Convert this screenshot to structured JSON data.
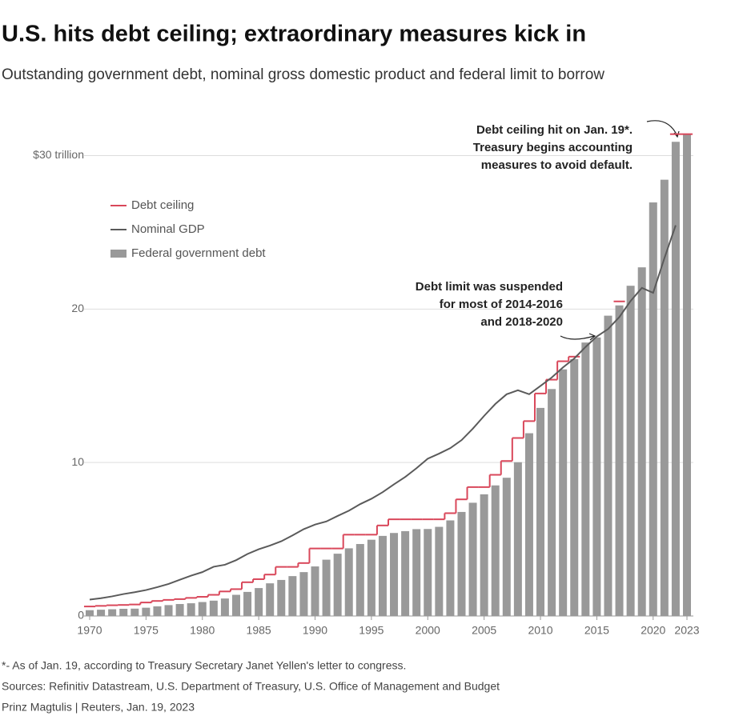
{
  "chart_data": {
    "type": "bar",
    "title": "U.S. hits debt ceiling; extraordinary measures kick in",
    "subtitle": "Outstanding government debt, nominal gross domestic product and federal limit to borrow",
    "x": [
      1970,
      1971,
      1972,
      1973,
      1974,
      1975,
      1976,
      1977,
      1978,
      1979,
      1980,
      1981,
      1982,
      1983,
      1984,
      1985,
      1986,
      1987,
      1988,
      1989,
      1990,
      1991,
      1992,
      1993,
      1994,
      1995,
      1996,
      1997,
      1998,
      1999,
      2000,
      2001,
      2002,
      2003,
      2004,
      2005,
      2006,
      2007,
      2008,
      2009,
      2010,
      2011,
      2012,
      2013,
      2014,
      2015,
      2016,
      2017,
      2018,
      2019,
      2020,
      2021,
      2022,
      2023
    ],
    "series": [
      {
        "name": "Debt ceiling",
        "type": "step",
        "color": "#d9475a",
        "values": [
          0.62,
          0.66,
          0.7,
          0.72,
          0.75,
          0.88,
          0.98,
          1.05,
          1.1,
          1.18,
          1.25,
          1.38,
          1.6,
          1.75,
          2.2,
          2.4,
          2.7,
          3.2,
          3.2,
          3.45,
          4.4,
          4.4,
          4.4,
          5.3,
          5.3,
          5.3,
          5.9,
          6.3,
          6.3,
          6.3,
          6.3,
          6.3,
          6.7,
          7.6,
          8.4,
          8.4,
          9.2,
          10.1,
          11.6,
          12.7,
          14.5,
          15.4,
          16.6,
          16.9,
          null,
          null,
          null,
          20.5,
          null,
          null,
          null,
          null,
          31.4,
          31.4
        ]
      },
      {
        "name": "Nominal GDP",
        "type": "line",
        "color": "#5a5a5a",
        "values": [
          1.07,
          1.16,
          1.28,
          1.43,
          1.55,
          1.69,
          1.88,
          2.09,
          2.36,
          2.63,
          2.86,
          3.21,
          3.34,
          3.64,
          4.04,
          4.35,
          4.59,
          4.87,
          5.25,
          5.66,
          5.96,
          6.16,
          6.52,
          6.86,
          7.29,
          7.64,
          8.07,
          8.58,
          9.06,
          9.63,
          10.25,
          10.58,
          10.94,
          11.46,
          12.21,
          13.04,
          13.82,
          14.45,
          14.71,
          14.45,
          14.99,
          15.54,
          16.2,
          16.78,
          17.53,
          18.21,
          18.7,
          19.48,
          20.53,
          21.38,
          21.06,
          23.32,
          25.46,
          null
        ]
      },
      {
        "name": "Federal government debt",
        "type": "bar",
        "color": "#999999",
        "values": [
          0.38,
          0.41,
          0.44,
          0.47,
          0.48,
          0.54,
          0.63,
          0.71,
          0.78,
          0.83,
          0.91,
          1.0,
          1.14,
          1.38,
          1.57,
          1.82,
          2.13,
          2.35,
          2.6,
          2.86,
          3.23,
          3.67,
          4.06,
          4.41,
          4.69,
          4.97,
          5.22,
          5.41,
          5.53,
          5.66,
          5.67,
          5.81,
          6.23,
          6.78,
          7.38,
          7.93,
          8.51,
          9.01,
          10.02,
          11.91,
          13.56,
          14.79,
          16.07,
          16.74,
          17.82,
          18.15,
          19.57,
          20.24,
          21.52,
          22.72,
          26.95,
          28.43,
          30.9,
          31.4
        ]
      }
    ],
    "xlim": [
      1969.8,
      2023.8
    ],
    "xticks": [
      1970,
      1975,
      1980,
      1985,
      1990,
      1995,
      2000,
      2005,
      2010,
      2015,
      2020,
      2023
    ],
    "ylim": [
      0,
      31.8
    ],
    "yticks": [
      0,
      10,
      20,
      {
        "value": 30,
        "label": "$30 trillion"
      }
    ],
    "grid": true,
    "legend": "top-left",
    "annotations": [
      {
        "lines": [
          "Debt ceiling hit on Jan. 19*.",
          "Treasury begins accounting",
          "measures to avoid default."
        ]
      },
      {
        "lines": [
          "Debt limit was suspended",
          "for most of 2014-2016",
          "and 2018-2020"
        ]
      }
    ],
    "notes": [
      "*- As of Jan. 19, according to Treasury Secretary Janet Yellen's letter to congress.",
      "Sources: Refinitiv Datastream, U.S. Department of Treasury, U.S. Office of Management and Budget",
      "Prinz Magtulis | Reuters, Jan. 19, 2023"
    ]
  }
}
